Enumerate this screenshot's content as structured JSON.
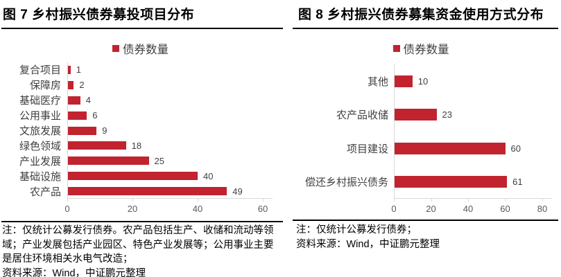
{
  "accent_red": "#c1232f",
  "axis_gray": "#d9d9d9",
  "panels": [
    {
      "title": "图 7 乡村振兴债券募投项目分布",
      "legend_label": "债券数量",
      "notes": [
        "注：仅统计公募发行债券。农产品包括生产、收储和流动等领域；产业发展包括产业园区、特色产业发展等；公用事业主要是居住环境相关水电气改造；",
        "资料来源：Wind，中证鹏元整理"
      ]
    },
    {
      "title": "图 8 乡村振兴债券募集资金使用方式分布",
      "legend_label": "债券数量",
      "notes": [
        "注：仅统计公募发行债券；",
        "资料来源：Wind，中证鹏元整理"
      ]
    }
  ],
  "chart_data": [
    {
      "type": "bar",
      "orientation": "horizontal",
      "title": "图 7 乡村振兴债券募投项目分布",
      "legend": [
        "债券数量"
      ],
      "legend_position": "top",
      "categories": [
        "复合项目",
        "保障房",
        "基础医疗",
        "公用事业",
        "文旅发展",
        "绿色领域",
        "产业发展",
        "基础设施",
        "农产品"
      ],
      "values": [
        1,
        2,
        4,
        6,
        9,
        18,
        25,
        40,
        49
      ],
      "series": [
        {
          "name": "债券数量",
          "values": [
            1,
            2,
            4,
            6,
            9,
            18,
            25,
            40,
            49
          ]
        }
      ],
      "xlim": [
        0,
        60
      ],
      "xticks": [
        0,
        20,
        40,
        60
      ],
      "value_labels": true,
      "grid": false,
      "bar_color": "#c1232f"
    },
    {
      "type": "bar",
      "orientation": "horizontal",
      "title": "图 8 乡村振兴债券募集资金使用方式分布",
      "legend": [
        "债券数量"
      ],
      "legend_position": "top",
      "categories": [
        "其他",
        "农产品收储",
        "项目建设",
        "偿还乡村振兴债务"
      ],
      "values": [
        10,
        23,
        60,
        61
      ],
      "series": [
        {
          "name": "债券数量",
          "values": [
            10,
            23,
            60,
            61
          ]
        }
      ],
      "xlim": [
        0,
        80
      ],
      "xticks": [
        0,
        20,
        40,
        60,
        80
      ],
      "value_labels": true,
      "grid": false,
      "bar_color": "#c1232f"
    }
  ]
}
